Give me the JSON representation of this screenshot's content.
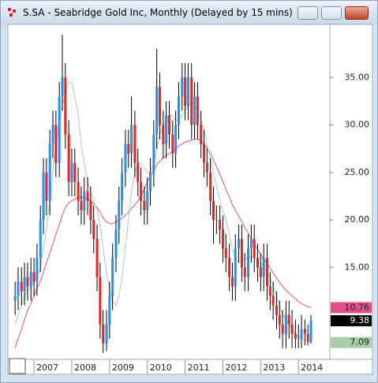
{
  "chart_data": {
    "type": "ohlc",
    "title": "S.SA - Seabridge Gold Inc, Monthly (Delayed by 15 mins)",
    "x": [
      2006.5,
      2006.58,
      2006.67,
      2006.75,
      2006.83,
      2006.92,
      2007,
      2007.08,
      2007.17,
      2007.25,
      2007.33,
      2007.42,
      2007.5,
      2007.58,
      2007.67,
      2007.75,
      2007.83,
      2007.92,
      2008,
      2008.08,
      2008.17,
      2008.25,
      2008.33,
      2008.42,
      2008.5,
      2008.58,
      2008.67,
      2008.75,
      2008.83,
      2008.92,
      2009,
      2009.08,
      2009.17,
      2009.25,
      2009.33,
      2009.42,
      2009.5,
      2009.58,
      2009.67,
      2009.75,
      2009.83,
      2009.92,
      2010,
      2010.08,
      2010.17,
      2010.25,
      2010.33,
      2010.42,
      2010.5,
      2010.58,
      2010.67,
      2010.75,
      2010.83,
      2010.92,
      2011,
      2011.08,
      2011.17,
      2011.25,
      2011.33,
      2011.42,
      2011.5,
      2011.58,
      2011.67,
      2011.75,
      2011.83,
      2011.92,
      2012,
      2012.08,
      2012.17,
      2012.25,
      2012.33,
      2012.42,
      2012.5,
      2012.58,
      2012.67,
      2012.75,
      2012.83,
      2012.92,
      2013,
      2013.08,
      2013.17,
      2013.25,
      2013.33,
      2013.42,
      2013.5,
      2013.58,
      2013.67,
      2013.75,
      2013.83,
      2013.92,
      2014,
      2014.08,
      2014.17,
      2014.25,
      2014.33
    ],
    "open": [
      11.5,
      12,
      13.5,
      12.5,
      14,
      13,
      14.5,
      13.5,
      16,
      20,
      25,
      22,
      28,
      30,
      26,
      33,
      35,
      29,
      24,
      26,
      24,
      22,
      21,
      23,
      22,
      20,
      18,
      14,
      9,
      7,
      9,
      12,
      16,
      19,
      22,
      25,
      28,
      27,
      30,
      26,
      24,
      22,
      21,
      23,
      25,
      29,
      34,
      30,
      28,
      31,
      29,
      27,
      30,
      33,
      35,
      32,
      35,
      30,
      33,
      30,
      28,
      26,
      25,
      22,
      20,
      20,
      19,
      17,
      16,
      14,
      13,
      17,
      18,
      15,
      14,
      17,
      18,
      16,
      15,
      14,
      16,
      13,
      12,
      11,
      10,
      9,
      8,
      10,
      9,
      8,
      7.5,
      7.5,
      8.5,
      8,
      7.2
    ],
    "high": [
      13.5,
      15,
      15,
      15.5,
      15.5,
      16,
      16,
      17.5,
      21.5,
      26.5,
      26.5,
      29.5,
      31.5,
      31.5,
      34.5,
      39.5,
      36.5,
      30.5,
      27.5,
      27.5,
      25.5,
      23.5,
      24.5,
      24.5,
      23.5,
      21.5,
      19.5,
      15.5,
      10.5,
      10.5,
      13.5,
      17.5,
      20.5,
      23.5,
      26.5,
      29.5,
      29.5,
      33,
      31.5,
      27.5,
      25.5,
      23.5,
      24.5,
      26.5,
      30.5,
      38,
      35.5,
      31.5,
      32.5,
      32.5,
      30.5,
      31.5,
      34.5,
      36.5,
      36.5,
      36.5,
      36.5,
      34.5,
      34.5,
      31.5,
      29.5,
      27.5,
      26.5,
      23.5,
      21.5,
      21.5,
      20.5,
      18.5,
      17.5,
      15.5,
      18.5,
      19.5,
      19.5,
      16.5,
      18.5,
      19.5,
      19.5,
      17.5,
      16.5,
      17.5,
      17.5,
      14.5,
      13.5,
      12.5,
      11.5,
      10.5,
      11.5,
      11.5,
      10.5,
      9.5,
      9,
      10,
      9.5,
      9,
      10
    ],
    "low": [
      10,
      10.5,
      11,
      11,
      11.5,
      11.5,
      12,
      12,
      14.5,
      18.5,
      20.5,
      20.5,
      26.5,
      24.5,
      24.5,
      31.5,
      27.5,
      22.5,
      22.5,
      22.5,
      20.5,
      19.5,
      19.5,
      20.5,
      18.5,
      16.5,
      12.5,
      7.5,
      6,
      6.2,
      7.5,
      10.5,
      14.5,
      17.5,
      20.5,
      23.5,
      25.5,
      25.5,
      24.5,
      22.5,
      20.5,
      19.5,
      19.5,
      21.5,
      23.5,
      27.5,
      28.5,
      26.5,
      26.5,
      27.5,
      25.5,
      25.5,
      28.5,
      31.5,
      30.5,
      30.5,
      28.5,
      28.5,
      28.5,
      26.5,
      24.5,
      23.5,
      20.5,
      17.5,
      18.5,
      17.5,
      15.5,
      14.5,
      12.5,
      11.5,
      11.5,
      15.5,
      13.5,
      12.5,
      12.5,
      15.5,
      14.5,
      13.5,
      12.5,
      12.5,
      11.5,
      10.5,
      9.5,
      8.5,
      7.5,
      6.5,
      6.5,
      7.5,
      6.5,
      6.5,
      6.5,
      6.5,
      6.8,
      6.8,
      7
    ],
    "close": [
      12,
      13.5,
      12.5,
      14,
      13,
      14.5,
      13.5,
      16,
      20,
      25,
      22,
      28,
      30,
      26,
      33,
      35,
      29,
      24,
      26,
      24,
      22,
      21,
      23,
      22,
      20,
      18,
      14,
      9,
      7,
      9,
      12,
      16,
      19,
      22,
      25,
      28,
      27,
      30,
      26,
      24,
      22,
      21,
      23,
      25,
      29,
      34,
      30,
      28,
      31,
      29,
      27,
      30,
      33,
      35,
      32,
      35,
      30,
      33,
      30,
      28,
      26,
      25,
      22,
      20,
      20,
      19,
      17,
      16,
      14,
      13,
      17,
      18,
      15,
      14,
      17,
      18,
      16,
      15,
      14,
      16,
      13,
      12,
      11,
      10,
      9,
      8,
      10,
      9,
      8,
      7.5,
      7.5,
      8.5,
      8,
      7.2,
      9.38
    ],
    "up_color": "#1e90ff",
    "down_color": "#ff1a1a",
    "wick_color": "#000000",
    "series": [
      {
        "color": "#e0508a",
        "values": [
          6.5,
          7.5,
          8.5,
          9.5,
          10.5,
          11.2,
          12,
          12.8,
          13.6,
          14.5,
          15.5,
          16.5,
          17.5,
          18.5,
          19.5,
          20.5,
          21.3,
          21.8,
          22,
          22.2,
          22.4,
          22.4,
          22.3,
          22.2,
          22,
          21.7,
          21.3,
          20.8,
          20.2,
          19.8,
          19.6,
          19.6,
          19.8,
          20,
          20.2,
          20.5,
          20.8,
          21.2,
          21.6,
          22,
          22.6,
          23.2,
          24,
          24.6,
          25.2,
          25.8,
          26.2,
          26.5,
          26.8,
          27,
          27.2,
          27.5,
          27.8,
          28,
          28.2,
          28.3,
          28.4,
          28.5,
          28.5,
          28.3,
          28,
          27.6,
          27,
          26.3,
          25.6,
          24.8,
          24,
          23.2,
          22.4,
          21.6,
          21,
          20.4,
          19.8,
          19.2,
          18.6,
          18,
          17.4,
          16.9,
          16.4,
          15.9,
          15.4,
          14.9,
          14.4,
          13.9,
          13.4,
          13,
          12.6,
          12.3,
          12,
          11.7,
          11.4,
          11.2,
          11,
          10.9,
          10.76
        ]
      },
      {
        "color": "#a8cfa8",
        "values": [
          9,
          10,
          11,
          12,
          12.5,
          13,
          13.5,
          14,
          15,
          17,
          19,
          22,
          25,
          28,
          30,
          32,
          33.5,
          34.5,
          34.5,
          33,
          31,
          28,
          26,
          24,
          23,
          22,
          21,
          19.5,
          17,
          14.5,
          12.5,
          11.5,
          11,
          12,
          14,
          17,
          20,
          23,
          25,
          26,
          26,
          25.5,
          25,
          25,
          26,
          27.5,
          29,
          30,
          30.5,
          31,
          31,
          30.5,
          30.5,
          31,
          31.5,
          32,
          32.5,
          32,
          31.5,
          30.5,
          29.5,
          28,
          26.5,
          25,
          23.5,
          22,
          21,
          20,
          18.5,
          17,
          16,
          15.5,
          15.5,
          16,
          16,
          16,
          16,
          15.5,
          15.5,
          15,
          14.5,
          14,
          13,
          12,
          11,
          10,
          9.5,
          9,
          8.5,
          8,
          7.8,
          7.5,
          7.3,
          7.2,
          7.09
        ]
      }
    ],
    "xlim": [
      2006.33,
      2014.81
    ],
    "xticks": [
      2007,
      2008,
      2009,
      2010,
      2011,
      2012,
      2013,
      2014
    ],
    "ylim": [
      5.4,
      40.5
    ],
    "yticks": [
      {
        "value": 15,
        "label": "15.00"
      },
      {
        "value": 20,
        "label": "20.00"
      },
      {
        "value": 25,
        "label": "25.00"
      },
      {
        "value": 30,
        "label": "30.00"
      },
      {
        "value": 35,
        "label": "35.00"
      }
    ],
    "grid": false
  }
}
